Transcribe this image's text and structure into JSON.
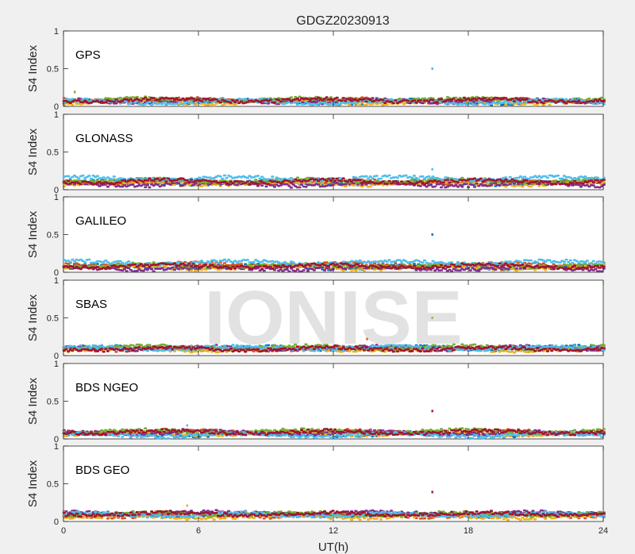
{
  "title": "GDGZ20230913",
  "watermark": "IONISE",
  "ylabel": "S4 Index",
  "xlabel": "UT(h)",
  "yticks": [
    "0",
    "0.5",
    "1"
  ],
  "xticks": [
    "0",
    "6",
    "12",
    "18",
    "24"
  ],
  "colors": [
    "#0072bd",
    "#d95319",
    "#edb120",
    "#7e2f8e",
    "#77ac30",
    "#4dbeee",
    "#a2142f"
  ],
  "chart_data": [
    {
      "type": "scatter",
      "label": "GPS",
      "xlim": [
        0,
        24
      ],
      "ylim": [
        0,
        1
      ],
      "base": [
        0.06,
        0.08,
        0.05,
        0.07,
        0.09,
        0.06,
        0.08
      ],
      "spikes": [
        {
          "x": 16.4,
          "y": 0.5,
          "c": 5
        },
        {
          "x": 0.5,
          "y": 0.19,
          "c": 4
        }
      ]
    },
    {
      "type": "scatter",
      "label": "GLONASS",
      "xlim": [
        0,
        24
      ],
      "ylim": [
        0,
        1
      ],
      "base": [
        0.09,
        0.1,
        0.08,
        0.07,
        0.12,
        0.15,
        0.11
      ],
      "spikes": [
        {
          "x": 16.4,
          "y": 0.27,
          "c": 5
        }
      ]
    },
    {
      "type": "scatter",
      "label": "GALILEO",
      "xlim": [
        0,
        24
      ],
      "ylim": [
        0,
        1
      ],
      "base": [
        0.07,
        0.1,
        0.06,
        0.05,
        0.09,
        0.13,
        0.08
      ],
      "spikes": [
        {
          "x": 16.4,
          "y": 0.5,
          "c": 0
        }
      ]
    },
    {
      "type": "scatter",
      "label": "SBAS",
      "xlim": [
        0,
        24
      ],
      "ylim": [
        0,
        1
      ],
      "base": [
        0.1,
        0.09,
        0.08,
        0.1,
        0.11,
        0.1,
        0.09
      ],
      "spikes": [
        {
          "x": 13.5,
          "y": 0.22,
          "c": 1
        },
        {
          "x": 16.4,
          "y": 0.5,
          "c": 4
        }
      ]
    },
    {
      "type": "scatter",
      "label": "BDS NGEO",
      "xlim": [
        0,
        24
      ],
      "ylim": [
        0,
        1
      ],
      "base": [
        0.06,
        0.09,
        0.07,
        0.08,
        0.1,
        0.05,
        0.09
      ],
      "spikes": [
        {
          "x": 16.4,
          "y": 0.37,
          "c": 6
        },
        {
          "x": 5.5,
          "y": 0.18,
          "c": 5
        }
      ]
    },
    {
      "type": "scatter",
      "label": "BDS GEO",
      "xlim": [
        0,
        24
      ],
      "ylim": [
        0,
        1
      ],
      "base": [
        0.09,
        0.08,
        0.06,
        0.11,
        0.1,
        0.09,
        0.1
      ],
      "spikes": [
        {
          "x": 16.4,
          "y": 0.39,
          "c": 6
        },
        {
          "x": 5.5,
          "y": 0.21,
          "c": 2
        }
      ]
    }
  ]
}
